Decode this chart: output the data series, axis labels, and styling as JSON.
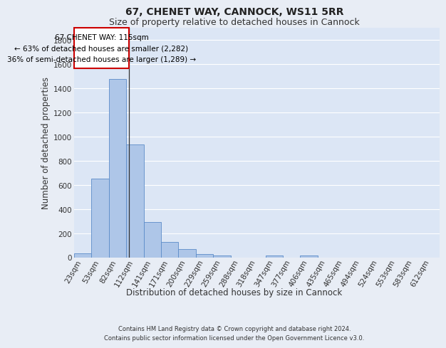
{
  "title": "67, CHENET WAY, CANNOCK, WS11 5RR",
  "subtitle": "Size of property relative to detached houses in Cannock",
  "xlabel": "Distribution of detached houses by size in Cannock",
  "ylabel": "Number of detached properties",
  "footer_line1": "Contains HM Land Registry data © Crown copyright and database right 2024.",
  "footer_line2": "Contains public sector information licensed under the Open Government Licence v3.0.",
  "categories": [
    "23sqm",
    "53sqm",
    "82sqm",
    "112sqm",
    "141sqm",
    "171sqm",
    "200sqm",
    "229sqm",
    "259sqm",
    "288sqm",
    "318sqm",
    "347sqm",
    "377sqm",
    "406sqm",
    "435sqm",
    "465sqm",
    "494sqm",
    "524sqm",
    "553sqm",
    "583sqm",
    "612sqm"
  ],
  "values": [
    35,
    650,
    1475,
    935,
    290,
    125,
    65,
    25,
    15,
    0,
    0,
    15,
    0,
    15,
    0,
    0,
    0,
    0,
    0,
    0,
    0
  ],
  "bar_color": "#aec6e8",
  "bar_edge_color": "#5b8cc8",
  "background_color": "#e8edf5",
  "plot_bg_color": "#dce6f5",
  "grid_color": "#ffffff",
  "annotation_text_line1": "67 CHENET WAY: 115sqm",
  "annotation_text_line2": "← 63% of detached houses are smaller (2,282)",
  "annotation_text_line3": "36% of semi-detached houses are larger (1,289) →",
  "annotation_box_color": "#cc0000",
  "vline_x_index": 2.67,
  "ylim": [
    0,
    1900
  ],
  "yticks": [
    0,
    200,
    400,
    600,
    800,
    1000,
    1200,
    1400,
    1600,
    1800
  ],
  "title_fontsize": 10,
  "subtitle_fontsize": 9,
  "axis_label_fontsize": 8.5,
  "tick_fontsize": 7.5,
  "annotation_fontsize": 7.5,
  "footer_fontsize": 6.0
}
